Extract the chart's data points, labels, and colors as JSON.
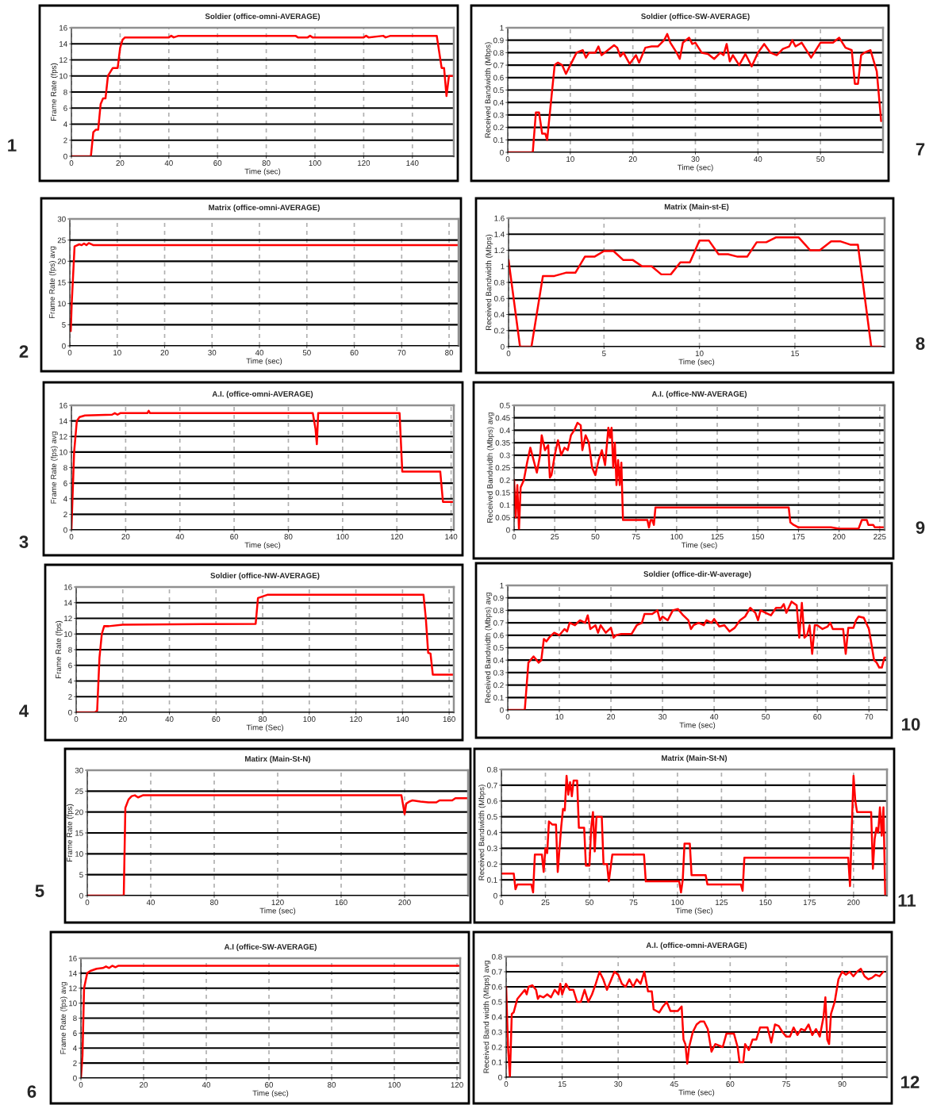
{
  "chart_data": [
    {
      "type": "line",
      "title": "Soldier (office-omni-AVERAGE)",
      "xlabel": "Time (sec)",
      "ylabel": "Frame Rate (fps)",
      "annotations": [
        "1"
      ],
      "color": "#ff0000",
      "grid": true,
      "xlim": [
        0,
        157
      ],
      "xticks": [
        0,
        20,
        40,
        60,
        80,
        100,
        120,
        140
      ],
      "ylim": [
        0,
        16
      ],
      "yticks": [
        0,
        2,
        4,
        6,
        8,
        10,
        12,
        14,
        16
      ],
      "x": [
        0,
        8,
        9,
        10,
        11,
        12,
        13,
        14,
        15,
        16,
        17,
        18,
        19,
        20,
        21,
        22,
        40,
        41,
        42,
        44,
        92,
        93,
        97,
        98,
        99,
        120,
        121,
        122,
        128,
        129,
        131,
        150,
        151,
        152,
        153,
        154,
        155,
        157
      ],
      "values": [
        0,
        0,
        3,
        3.3,
        3.3,
        6.5,
        7.2,
        7.2,
        10,
        10.5,
        11,
        11,
        11,
        13.5,
        14.5,
        14.8,
        14.8,
        15,
        14.8,
        15,
        15,
        14.8,
        14.8,
        15,
        14.8,
        14.8,
        15,
        14.8,
        15,
        14.8,
        15,
        15,
        13,
        11,
        11,
        7.5,
        10,
        10
      ]
    },
    {
      "type": "line",
      "title": "Soldier (office-SW-AVERAGE)",
      "xlabel": "Time (sec)",
      "ylabel": "Received Bandwidth (Mbps)",
      "annotations": [
        "7"
      ],
      "color": "#ff0000",
      "grid": true,
      "xlim": [
        0,
        60
      ],
      "xticks": [
        0,
        10,
        20,
        30,
        40,
        50
      ],
      "ylim": [
        0,
        1
      ],
      "yticks": [
        0,
        0.1,
        0.2,
        0.3,
        0.4,
        0.5,
        0.6,
        0.7,
        0.8,
        0.9,
        1
      ],
      "x": [
        0,
        4,
        4.5,
        5,
        5.5,
        6,
        6.3,
        7,
        7.5,
        8,
        8.7,
        9.3,
        10,
        11,
        12,
        12.5,
        13,
        14,
        14.5,
        15,
        16,
        17,
        17.5,
        18,
        18.5,
        19.5,
        20.5,
        21,
        22,
        23,
        24,
        25,
        25.5,
        26,
        27,
        27.5,
        28,
        29,
        29.5,
        30,
        31,
        32,
        33,
        34,
        34.5,
        35,
        35.5,
        36,
        37,
        38,
        39,
        40,
        41,
        42,
        43,
        44,
        45,
        45.5,
        46,
        47,
        48,
        48.5,
        49,
        50,
        51,
        52,
        53,
        54,
        55,
        55.5,
        56,
        56.5,
        57,
        58,
        59,
        59.7
      ],
      "values": [
        0,
        0,
        0.32,
        0.32,
        0.15,
        0.15,
        0.1,
        0.45,
        0.7,
        0.72,
        0.7,
        0.63,
        0.7,
        0.8,
        0.82,
        0.76,
        0.8,
        0.8,
        0.85,
        0.78,
        0.82,
        0.86,
        0.84,
        0.77,
        0.8,
        0.71,
        0.78,
        0.72,
        0.84,
        0.85,
        0.85,
        0.9,
        0.95,
        0.88,
        0.8,
        0.75,
        0.88,
        0.92,
        0.87,
        0.88,
        0.8,
        0.79,
        0.75,
        0.8,
        0.78,
        0.87,
        0.73,
        0.78,
        0.7,
        0.79,
        0.69,
        0.8,
        0.87,
        0.8,
        0.78,
        0.83,
        0.85,
        0.9,
        0.85,
        0.88,
        0.8,
        0.76,
        0.8,
        0.88,
        0.88,
        0.88,
        0.92,
        0.84,
        0.82,
        0.55,
        0.55,
        0.78,
        0.8,
        0.82,
        0.65,
        0.25
      ]
    },
    {
      "type": "line",
      "title": "Matrix (office-omni-AVERAGE)",
      "xlabel": "Time (sec)",
      "ylabel": "Frame Rate (fps) avg",
      "annotations": [
        "2"
      ],
      "color": "#ff0000",
      "grid": true,
      "xlim": [
        0,
        82
      ],
      "xticks": [
        0,
        10,
        20,
        30,
        40,
        50,
        60,
        70,
        80
      ],
      "ylim": [
        0,
        30
      ],
      "yticks": [
        0,
        5,
        10,
        15,
        20,
        25,
        30
      ],
      "x": [
        0.2,
        0.4,
        1,
        2,
        2.5,
        3,
        3.5,
        4,
        5,
        82
      ],
      "values": [
        3.5,
        10,
        23.5,
        24,
        23.8,
        24.2,
        23.8,
        24.3,
        23.8,
        23.8
      ]
    },
    {
      "type": "line",
      "title": "Matrix (Main-st-E)",
      "xlabel": "Time (sec)",
      "ylabel": "Received Bandwidth (Mbps)",
      "annotations": [
        "8"
      ],
      "color": "#ff0000",
      "grid": true,
      "xlim": [
        0,
        19.7
      ],
      "xticks": [
        0,
        5,
        10,
        15
      ],
      "ylim": [
        0,
        1.6
      ],
      "yticks": [
        0,
        0.2,
        0.4,
        0.6,
        0.8,
        1,
        1.2,
        1.4,
        1.6
      ],
      "x": [
        0,
        0.6,
        1.2,
        1.8,
        2.4,
        3,
        3.5,
        4,
        4.5,
        5,
        5.5,
        6,
        6.5,
        7,
        7.5,
        8,
        8.5,
        9,
        9.5,
        10,
        10.5,
        11,
        11.5,
        12,
        12.5,
        13,
        13.5,
        14,
        15.2,
        15.8,
        16.3,
        16.9,
        17.4,
        17.9,
        18.3,
        19,
        19.5
      ],
      "values": [
        1.08,
        0,
        0,
        0.88,
        0.88,
        0.92,
        0.92,
        1.12,
        1.12,
        1.19,
        1.19,
        1.08,
        1.08,
        1.0,
        1.0,
        0.9,
        0.9,
        1.05,
        1.05,
        1.32,
        1.32,
        1.15,
        1.15,
        1.12,
        1.12,
        1.3,
        1.3,
        1.36,
        1.36,
        1.2,
        1.2,
        1.31,
        1.31,
        1.27,
        1.27,
        0,
        0
      ]
    },
    {
      "type": "line",
      "title": "A.I. (office-omni-AVERAGE)",
      "xlabel": "Time (sec)",
      "ylabel": "Frame Rate (fps) avg",
      "annotations": [
        "3"
      ],
      "color": "#ff0000",
      "grid": true,
      "xlim": [
        0,
        141
      ],
      "xticks": [
        0,
        20,
        40,
        60,
        80,
        100,
        120,
        140
      ],
      "ylim": [
        0,
        16
      ],
      "yticks": [
        0,
        2,
        4,
        6,
        8,
        10,
        12,
        14,
        16
      ],
      "x": [
        0,
        1,
        2,
        3,
        5,
        15,
        16,
        17,
        18,
        28,
        28.5,
        29,
        89,
        90,
        90.5,
        91,
        121,
        122,
        136,
        137,
        141
      ],
      "values": [
        0,
        10,
        14,
        14.5,
        14.7,
        14.8,
        15,
        14.8,
        15,
        15,
        15.3,
        15,
        15,
        13,
        11,
        15,
        15,
        7.5,
        7.5,
        3.6,
        3.6
      ]
    },
    {
      "type": "line",
      "title": "A.I. (office-NW-AVERAGE)",
      "xlabel": "Time (sec)",
      "ylabel": "Received Bandwidth (Mbps) avg",
      "annotations": [
        "9"
      ],
      "color": "#ff0000",
      "grid": true,
      "xlim": [
        0,
        228
      ],
      "xticks": [
        0,
        25,
        50,
        75,
        100,
        125,
        150,
        175,
        200,
        225
      ],
      "ylim": [
        0,
        0.5
      ],
      "yticks": [
        0,
        0.05,
        0.1,
        0.15,
        0.2,
        0.25,
        0.3,
        0.35,
        0.4,
        0.45,
        0.5
      ],
      "x": [
        0,
        1,
        2,
        3,
        4,
        6,
        8,
        10,
        12,
        14,
        16,
        17,
        19,
        21,
        22,
        23,
        25,
        27,
        29,
        31,
        33,
        35,
        37,
        39,
        41,
        42,
        44,
        46,
        48,
        50,
        52,
        54,
        56,
        58,
        59,
        60,
        61,
        62,
        63,
        64,
        65,
        66,
        67,
        82,
        83,
        84,
        85,
        86,
        87,
        169,
        170,
        172,
        175,
        195,
        200,
        212,
        214,
        217,
        218,
        221,
        222,
        228
      ],
      "values": [
        0.2,
        0.05,
        0.18,
        0,
        0.17,
        0.2,
        0.27,
        0.33,
        0.28,
        0.23,
        0.3,
        0.38,
        0.32,
        0.34,
        0.21,
        0.22,
        0.3,
        0.36,
        0.3,
        0.33,
        0.32,
        0.38,
        0.4,
        0.43,
        0.42,
        0.32,
        0.38,
        0.35,
        0.25,
        0.22,
        0.28,
        0.32,
        0.26,
        0.41,
        0.37,
        0.41,
        0.25,
        0.35,
        0.18,
        0.28,
        0.18,
        0.27,
        0.04,
        0.04,
        0.01,
        0.04,
        0.04,
        0.02,
        0.09,
        0.09,
        0.03,
        0.02,
        0.01,
        0.01,
        0.005,
        0.005,
        0.04,
        0.04,
        0.02,
        0.02,
        0.01,
        0.01
      ]
    },
    {
      "type": "line",
      "title": "Soldier (office-NW-AVERAGE)",
      "xlabel": "Time (Sec)",
      "ylabel": "Frame Rate (fps)",
      "annotations": [
        "4"
      ],
      "color": "#ff0000",
      "grid": true,
      "xlim": [
        0,
        162
      ],
      "xticks": [
        0,
        20,
        40,
        60,
        80,
        100,
        120,
        140,
        160
      ],
      "ylim": [
        0,
        16
      ],
      "yticks": [
        0,
        2,
        4,
        6,
        8,
        10,
        12,
        14,
        16
      ],
      "x": [
        0,
        8,
        9,
        10,
        11,
        12,
        14,
        20,
        77,
        78,
        80,
        82,
        149,
        150,
        151,
        152,
        153,
        162
      ],
      "values": [
        0,
        0,
        0.2,
        7,
        10,
        11,
        11,
        11.2,
        11.3,
        14.6,
        14.8,
        15,
        15,
        12,
        7.6,
        7.5,
        4.8,
        4.8
      ]
    },
    {
      "type": "line",
      "title": "Soldier (office-dir-W-average)",
      "xlabel": "Time (sec)",
      "ylabel": "Received Bandwidth (Mbps) avg",
      "annotations": [
        "10"
      ],
      "color": "#ff0000",
      "grid": true,
      "xlim": [
        0,
        73.5
      ],
      "xticks": [
        0,
        10,
        20,
        30,
        40,
        50,
        60,
        70
      ],
      "ylim": [
        0,
        1
      ],
      "yticks": [
        0,
        0.1,
        0.2,
        0.3,
        0.4,
        0.5,
        0.6,
        0.7,
        0.8,
        0.9,
        1
      ],
      "x": [
        0,
        3.3,
        4,
        5,
        6,
        6.5,
        7,
        7.5,
        8,
        9,
        10,
        11,
        11.5,
        12,
        13,
        14,
        15,
        15.5,
        16,
        17,
        17.5,
        18,
        19,
        20,
        20.5,
        21,
        22,
        24,
        25,
        26,
        26.5,
        28,
        29,
        29.5,
        30,
        31,
        32,
        33,
        34,
        35,
        35.5,
        36,
        37,
        38,
        38.5,
        39.5,
        40,
        41,
        42,
        43,
        44,
        45,
        46,
        47,
        48,
        48.5,
        49,
        50,
        51,
        52,
        53,
        53.5,
        54,
        55,
        56,
        56.5,
        57,
        57.5,
        58,
        58.5,
        59,
        59.5,
        60,
        61,
        62,
        62.5,
        63,
        65,
        65.5,
        66,
        67,
        67.5,
        68,
        69,
        70,
        71,
        71.5,
        72,
        72.5,
        73,
        73.5
      ],
      "values": [
        0,
        0,
        0.38,
        0.43,
        0.38,
        0.4,
        0.57,
        0.55,
        0.58,
        0.62,
        0.6,
        0.65,
        0.63,
        0.7,
        0.68,
        0.72,
        0.7,
        0.76,
        0.65,
        0.68,
        0.62,
        0.68,
        0.62,
        0.66,
        0.58,
        0.6,
        0.61,
        0.61,
        0.68,
        0.7,
        0.77,
        0.77,
        0.8,
        0.72,
        0.75,
        0.72,
        0.8,
        0.81,
        0.76,
        0.72,
        0.65,
        0.68,
        0.7,
        0.68,
        0.72,
        0.7,
        0.73,
        0.67,
        0.68,
        0.63,
        0.66,
        0.72,
        0.75,
        0.82,
        0.78,
        0.72,
        0.8,
        0.78,
        0.76,
        0.82,
        0.82,
        0.85,
        0.78,
        0.87,
        0.84,
        0.58,
        0.86,
        0.58,
        0.6,
        0.68,
        0.45,
        0.68,
        0.68,
        0.65,
        0.67,
        0.7,
        0.65,
        0.65,
        0.45,
        0.66,
        0.66,
        0.72,
        0.75,
        0.74,
        0.65,
        0.4,
        0.38,
        0.34,
        0.34,
        0.42,
        0.42
      ]
    },
    {
      "type": "line",
      "title": "Matirx (Main-St-N)",
      "xlabel": "Time (sec)",
      "ylabel": "Frame Rate (fps)",
      "annotations": [
        "5"
      ],
      "color": "#ff0000",
      "grid": true,
      "xlim": [
        0,
        240
      ],
      "xticks": [
        0,
        40,
        80,
        120,
        160,
        200
      ],
      "ylim": [
        0,
        30
      ],
      "yticks": [
        0,
        5,
        10,
        15,
        20,
        25,
        30
      ],
      "x": [
        0,
        23,
        24,
        26,
        28,
        30,
        32,
        35,
        198,
        200,
        201,
        203,
        205,
        210,
        215,
        220,
        222,
        230,
        232,
        240
      ],
      "values": [
        0,
        0,
        21,
        23,
        23.8,
        24,
        23.5,
        24,
        24,
        19.5,
        22,
        22.5,
        22.8,
        22.5,
        22.3,
        22.3,
        22.8,
        22.8,
        23.3,
        23.3
      ]
    },
    {
      "type": "line",
      "title": "Matrix (Main-St-N)",
      "xlabel": "Time (Sec)",
      "ylabel": "Received Bandwidth (Mbps)",
      "annotations": [
        "11"
      ],
      "color": "#ff0000",
      "grid": true,
      "xlim": [
        0,
        219
      ],
      "xticks": [
        0,
        25,
        50,
        75,
        100,
        125,
        150,
        175,
        200
      ],
      "ylim": [
        0,
        0.8
      ],
      "yticks": [
        0,
        0.1,
        0.2,
        0.3,
        0.4,
        0.5,
        0.6,
        0.7,
        0.8
      ],
      "x": [
        0,
        7,
        8,
        9,
        17,
        18,
        19,
        23,
        24,
        25,
        26,
        27,
        29,
        31,
        32,
        33,
        34,
        35,
        36,
        37,
        38,
        39,
        40,
        41,
        43,
        44,
        47,
        48,
        50,
        51,
        52,
        53,
        54,
        57,
        58,
        60,
        61,
        63,
        81,
        82,
        101,
        102,
        103,
        104,
        107,
        108,
        116,
        117,
        136,
        137,
        138,
        197,
        198,
        199,
        200,
        201,
        202,
        210,
        211,
        212,
        213,
        214,
        215,
        216,
        217,
        218
      ],
      "values": [
        0.14,
        0.14,
        0.04,
        0.07,
        0.07,
        0.02,
        0.26,
        0.26,
        0.15,
        0.3,
        0.27,
        0.47,
        0.45,
        0.45,
        0.15,
        0.3,
        0.44,
        0.55,
        0.54,
        0.76,
        0.64,
        0.72,
        0.63,
        0.73,
        0.73,
        0.43,
        0.43,
        0.19,
        0.19,
        0.43,
        0.53,
        0.28,
        0.5,
        0.5,
        0.2,
        0.2,
        0.09,
        0.26,
        0.26,
        0.09,
        0.09,
        0.02,
        0.1,
        0.33,
        0.33,
        0.13,
        0.13,
        0.07,
        0.07,
        0.03,
        0.24,
        0.24,
        0.06,
        0.43,
        0.76,
        0.6,
        0.53,
        0.53,
        0.17,
        0.36,
        0.43,
        0.4,
        0.56,
        0.38,
        0.56,
        0
      ]
    },
    {
      "type": "line",
      "title": "A.I (office-SW-AVERAGE)",
      "xlabel": "Time (sec)",
      "ylabel": "Frame Rate (fps) avg",
      "annotations": [
        "6"
      ],
      "color": "#ff0000",
      "grid": true,
      "xlim": [
        0,
        121
      ],
      "xticks": [
        0,
        20,
        40,
        60,
        80,
        100,
        120
      ],
      "ylim": [
        0,
        16
      ],
      "yticks": [
        0,
        2,
        4,
        6,
        8,
        10,
        12,
        14,
        16
      ],
      "x": [
        0,
        0.5,
        1,
        2,
        3,
        5,
        7,
        8,
        9,
        10,
        11,
        12,
        121
      ],
      "values": [
        0,
        3,
        12,
        14,
        14.3,
        14.6,
        14.7,
        14.9,
        14.7,
        15,
        14.8,
        15,
        15
      ]
    },
    {
      "type": "line",
      "title": "A.I. (office-omni-AVERAGE)",
      "xlabel": "Time (sec)",
      "ylabel": "Received Band width (Mbps) avg",
      "annotations": [
        "12"
      ],
      "color": "#ff0000",
      "grid": true,
      "xlim": [
        0,
        102
      ],
      "xticks": [
        0,
        15,
        30,
        45,
        60,
        75,
        90
      ],
      "ylim": [
        0,
        0.8
      ],
      "yticks": [
        0,
        0.1,
        0.2,
        0.3,
        0.4,
        0.5,
        0.6,
        0.7,
        0.8
      ],
      "x": [
        0,
        0.5,
        1,
        1.5,
        2,
        3,
        4,
        5,
        5.5,
        6,
        7,
        8,
        8.5,
        9,
        10,
        11,
        12,
        13,
        14,
        14.5,
        15,
        16,
        17,
        18,
        19,
        20,
        21,
        22,
        23,
        24,
        25,
        26,
        27,
        28,
        29,
        30,
        31,
        32,
        33,
        34,
        35,
        36,
        37,
        38,
        39,
        39.5,
        41,
        42,
        43,
        44,
        46,
        47,
        47.5,
        48,
        48.5,
        49,
        50,
        51,
        52,
        53,
        54,
        55,
        56,
        58,
        59,
        61,
        62,
        62.5,
        63.5,
        64,
        65,
        66,
        67,
        68,
        70,
        71,
        72,
        73,
        74,
        75,
        76,
        77,
        78,
        79,
        80,
        81,
        82,
        83,
        84,
        85,
        85.5,
        86,
        86.5,
        87,
        88,
        89,
        90,
        91,
        92,
        93,
        94,
        95,
        96,
        97,
        98,
        99,
        100,
        101
      ],
      "values": [
        0.6,
        0.2,
        0,
        0.42,
        0.43,
        0.52,
        0.55,
        0.58,
        0.55,
        0.6,
        0.61,
        0.58,
        0.52,
        0.54,
        0.53,
        0.55,
        0.53,
        0.58,
        0.55,
        0.62,
        0.55,
        0.62,
        0.58,
        0.58,
        0.5,
        0.5,
        0.58,
        0.5,
        0.55,
        0.62,
        0.7,
        0.65,
        0.58,
        0.64,
        0.7,
        0.68,
        0.62,
        0.6,
        0.65,
        0.6,
        0.65,
        0.62,
        0.7,
        0.57,
        0.57,
        0.45,
        0.43,
        0.47,
        0.5,
        0.44,
        0.44,
        0.47,
        0.25,
        0.22,
        0.09,
        0.2,
        0.3,
        0.35,
        0.37,
        0.37,
        0.32,
        0.17,
        0.22,
        0.2,
        0.29,
        0.29,
        0.2,
        0.1,
        0.1,
        0.22,
        0.18,
        0.25,
        0.25,
        0.33,
        0.33,
        0.23,
        0.35,
        0.34,
        0.3,
        0.27,
        0.27,
        0.33,
        0.28,
        0.32,
        0.31,
        0.35,
        0.28,
        0.32,
        0.27,
        0.4,
        0.53,
        0.25,
        0.22,
        0.42,
        0.5,
        0.65,
        0.7,
        0.68,
        0.7,
        0.67,
        0.7,
        0.72,
        0.67,
        0.65,
        0.66,
        0.68,
        0.67,
        0.7
      ]
    }
  ]
}
